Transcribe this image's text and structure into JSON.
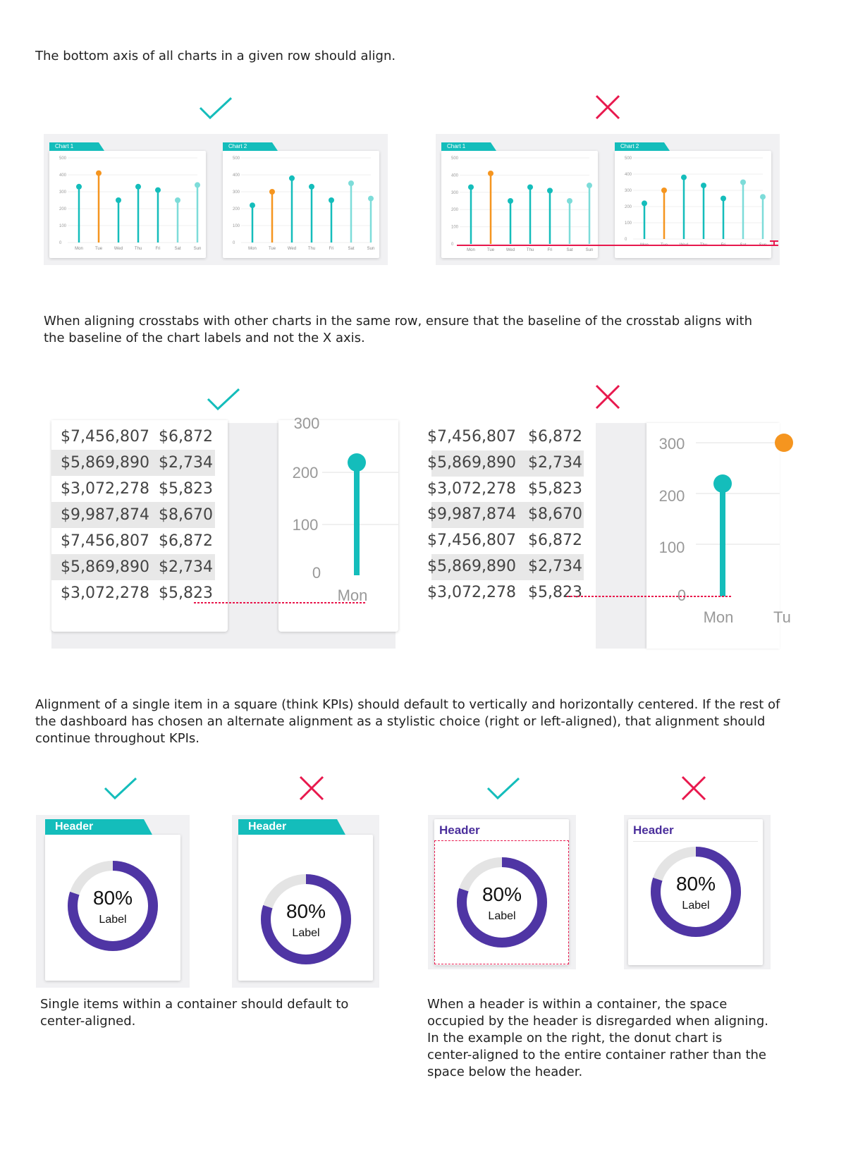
{
  "section1": {
    "text": "The bottom axis of all charts in a given row should align.",
    "good_charts": [
      {
        "tab": "Chart 1"
      },
      {
        "tab": "Chart 2"
      }
    ],
    "bad_charts": [
      {
        "tab": "Chart 1"
      },
      {
        "tab": "Chart 2"
      }
    ]
  },
  "section2": {
    "text": "When aligning crosstabs with other charts in the same row, ensure that the baseline of the crosstab aligns with the baseline of the chart labels and not the X axis.",
    "good": {
      "rows": [
        {
          "a": "$7,456,807",
          "b": "$6,872"
        },
        {
          "a": "$5,869,890",
          "b": "$2,734"
        },
        {
          "a": "$3,072,278",
          "b": "$5,823"
        },
        {
          "a": "$9,987,874",
          "b": "$8,670"
        },
        {
          "a": "$7,456,807",
          "b": "$6,872"
        },
        {
          "a": "$5,869,890",
          "b": "$2,734"
        },
        {
          "a": "$3,072,278",
          "b": "$5,823"
        }
      ],
      "axis_ticks": [
        "300",
        "200",
        "100",
        "0"
      ],
      "x_label": "Mon"
    },
    "bad": {
      "rows": [
        {
          "a": "$7,456,807",
          "b": "$6,872"
        },
        {
          "a": "$5,869,890",
          "b": "$2,734"
        },
        {
          "a": "$3,072,278",
          "b": "$5,823"
        },
        {
          "a": "$9,987,874",
          "b": "$8,670"
        },
        {
          "a": "$7,456,807",
          "b": "$6,872"
        },
        {
          "a": "$5,869,890",
          "b": "$2,734"
        },
        {
          "a": "$3,072,278",
          "b": "$5,823"
        }
      ],
      "axis_ticks": [
        "300",
        "200",
        "100",
        "0"
      ],
      "x_label_1": "Mon",
      "x_label_2": "Tu"
    }
  },
  "section3": {
    "text": "Alignment  of a single item in a square (think KPIs) should default to vertically and horizontally centered. If the rest of the dashboard has chosen an alternate alignment as a stylistic choice (right or left-aligned), that alignment should continue throughout KPIs.",
    "kpis": [
      {
        "header": "Header",
        "value": "80%",
        "label": "Label",
        "percent": 80
      },
      {
        "header": "Header",
        "value": "80%",
        "label": "Label",
        "percent": 80
      },
      {
        "header": "Header",
        "value": "80%",
        "label": "Label",
        "percent": 80
      },
      {
        "header": "Header",
        "value": "80%",
        "label": "Label",
        "percent": 80
      }
    ],
    "caption_left": "Single items within a container should default to center-aligned.",
    "caption_right": "When a header is within a container, the space occupied by the header is disregarded when aligning. In the example on the right, the donut chart is center-aligned to the entire container rather than the  space below the header."
  },
  "chart_data": [
    {
      "type": "scatter",
      "title": "Chart 1",
      "categories": [
        "Mon",
        "Tue",
        "Wed",
        "Thu",
        "Fri",
        "Sat",
        "Sun"
      ],
      "values": [
        330,
        410,
        250,
        330,
        310,
        250,
        340
      ],
      "ylim": [
        0,
        500
      ],
      "yticks": [
        "0",
        "100",
        "200",
        "300",
        "400",
        "500"
      ]
    },
    {
      "type": "scatter",
      "title": "Chart 2",
      "categories": [
        "Mon",
        "Tue",
        "Wed",
        "Thu",
        "Fri",
        "Sat",
        "Sun"
      ],
      "values": [
        220,
        300,
        380,
        330,
        250,
        350,
        260
      ],
      "ylim": [
        0,
        500
      ],
      "yticks": [
        "0",
        "100",
        "200",
        "300",
        "400",
        "500"
      ]
    }
  ],
  "colors": {
    "teal": "#14bdbb",
    "light_teal": "#7ddcd9",
    "orange": "#f5951f",
    "purple": "#4f35a4",
    "track": "#e4e4e4",
    "red": "#e8184d"
  }
}
